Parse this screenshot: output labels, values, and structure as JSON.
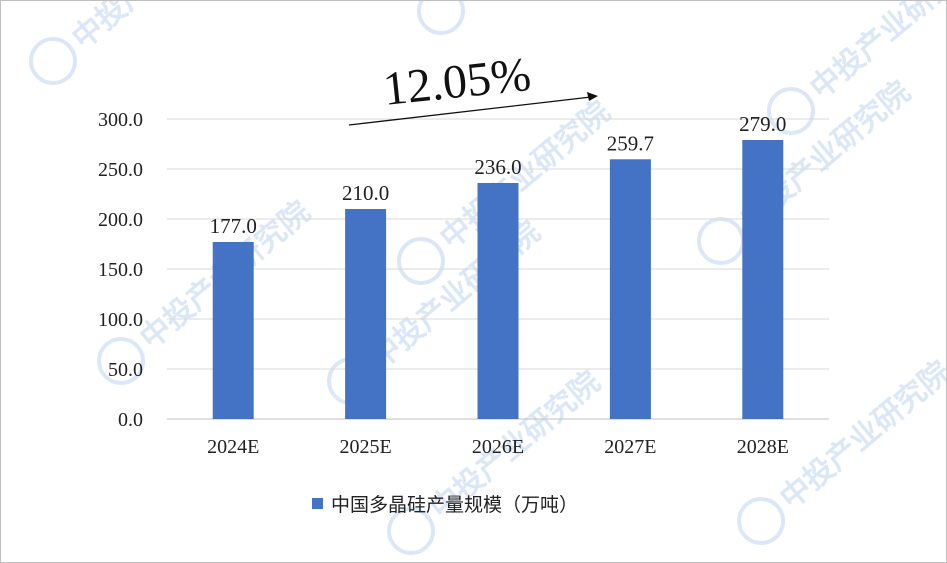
{
  "chart_data": {
    "type": "bar",
    "categories": [
      "2024E",
      "2025E",
      "2026E",
      "2027E",
      "2028E"
    ],
    "series": [
      {
        "name": "中国多晶硅产量规模（万吨）",
        "values": [
          177.0,
          210.0,
          236.0,
          259.7,
          279.0
        ],
        "color": "#4472C4"
      }
    ],
    "value_labels": [
      "177.0",
      "210.0",
      "236.0",
      "259.7",
      "279.0"
    ],
    "ylim": [
      0,
      300
    ],
    "yticks": [
      "0.0",
      "50.0",
      "100.0",
      "150.0",
      "200.0",
      "250.0",
      "300.0"
    ],
    "ytick_values": [
      0,
      50,
      100,
      150,
      200,
      250,
      300
    ],
    "grid": true,
    "legend": "bottom-center",
    "annotation": {
      "text": "12.05%",
      "type": "growth-arrow"
    },
    "watermark": {
      "text": "中投产业研究院"
    }
  }
}
